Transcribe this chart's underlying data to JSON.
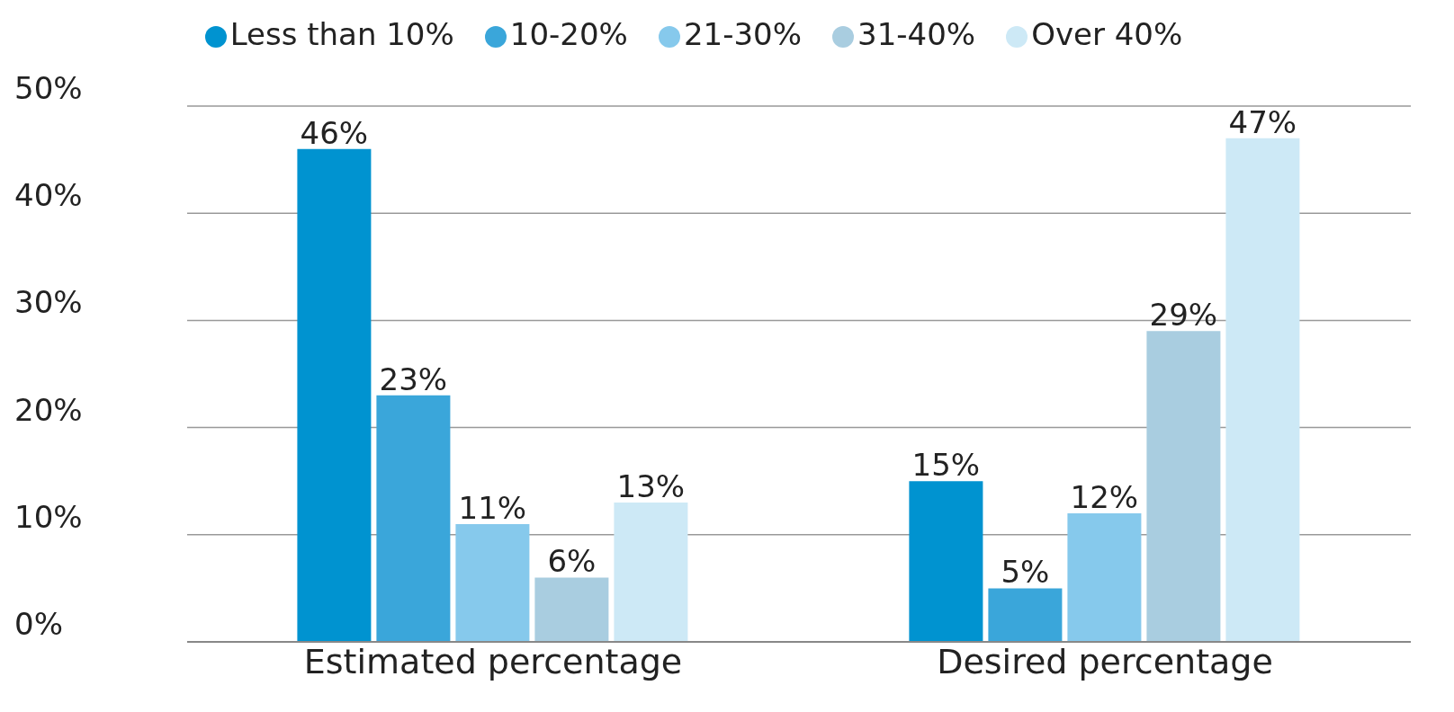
{
  "chart_data": {
    "type": "bar",
    "categories": [
      "Estimated percentage",
      "Desired percentage"
    ],
    "series": [
      {
        "name": "Less than 10%",
        "color": "#0093d0",
        "values": [
          46,
          15
        ],
        "value_labels": [
          "46%",
          "15%"
        ]
      },
      {
        "name": "10-20%",
        "color": "#3aa6da",
        "values": [
          23,
          5
        ],
        "value_labels": [
          "23%",
          "5%"
        ]
      },
      {
        "name": "21-30%",
        "color": "#86c9ec",
        "values": [
          11,
          12
        ],
        "value_labels": [
          "11%",
          "12%"
        ]
      },
      {
        "name": "31-40%",
        "color": "#a9cde0",
        "values": [
          6,
          29
        ],
        "value_labels": [
          "6%",
          "29%"
        ]
      },
      {
        "name": "Over 40%",
        "color": "#cde9f6",
        "values": [
          13,
          47
        ],
        "value_labels": [
          "13%",
          "47%"
        ]
      }
    ],
    "ylim": [
      0,
      50
    ],
    "yticks": [
      {
        "value": 0,
        "label": "0%"
      },
      {
        "value": 10,
        "label": "10%"
      },
      {
        "value": 20,
        "label": "20%"
      },
      {
        "value": 30,
        "label": "30%"
      },
      {
        "value": 40,
        "label": "40%"
      },
      {
        "value": 50,
        "label": "50%"
      }
    ],
    "grid": "y",
    "legend": "top"
  }
}
